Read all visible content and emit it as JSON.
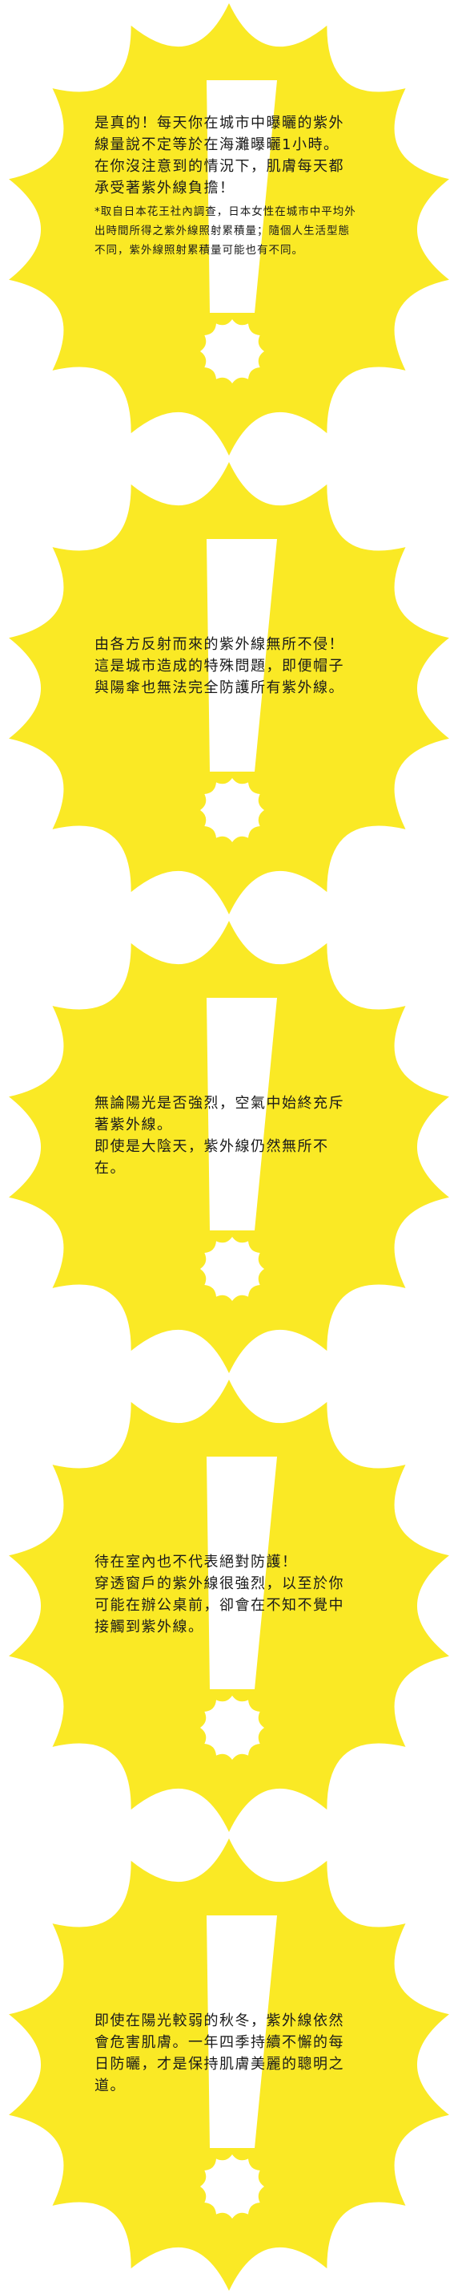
{
  "colors": {
    "burst_yellow": "#FAE925",
    "exclamation_white": "#FFFFFF",
    "text": "#1A1A1A"
  },
  "panels": [
    {
      "icon": "exclamation-burst-icon",
      "lines": [
        "是真的！每天你在城市中曝曬的紫外線量說不定等於在海灘曝曬1小時。",
        "在你沒注意到的情況下，肌膚每天都承受著紫外線負擔！"
      ],
      "note": "*取自日本花王社內調查，日本女性在城市中平均外出時間所得之紫外線照射累積量；隨個人生活型態不同，紫外線照射累積量可能也有不同。"
    },
    {
      "icon": "exclamation-burst-icon",
      "lines": [
        "由各方反射而來的紫外線無所不侵！這是城市造成的特殊問題，即便帽子與陽傘也無法完全防護所有紫外線。"
      ]
    },
    {
      "icon": "exclamation-burst-icon",
      "lines": [
        "無論陽光是否強烈，空氣中始終充斥著紫外線。",
        "即使是大陰天，紫外線仍然無所不在。"
      ]
    },
    {
      "icon": "exclamation-burst-icon",
      "lines": [
        "待在室內也不代表絕對防護！",
        "穿透窗戶的紫外線很強烈，以至於你可能在辦公桌前，卻會在不知不覺中接觸到紫外線。"
      ]
    },
    {
      "icon": "exclamation-burst-icon",
      "lines": [
        "即使在陽光較弱的秋冬，紫外線依然會危害肌膚。一年四季持續不懈的每日防曬，才是保持肌膚美麗的聰明之道。"
      ]
    }
  ]
}
